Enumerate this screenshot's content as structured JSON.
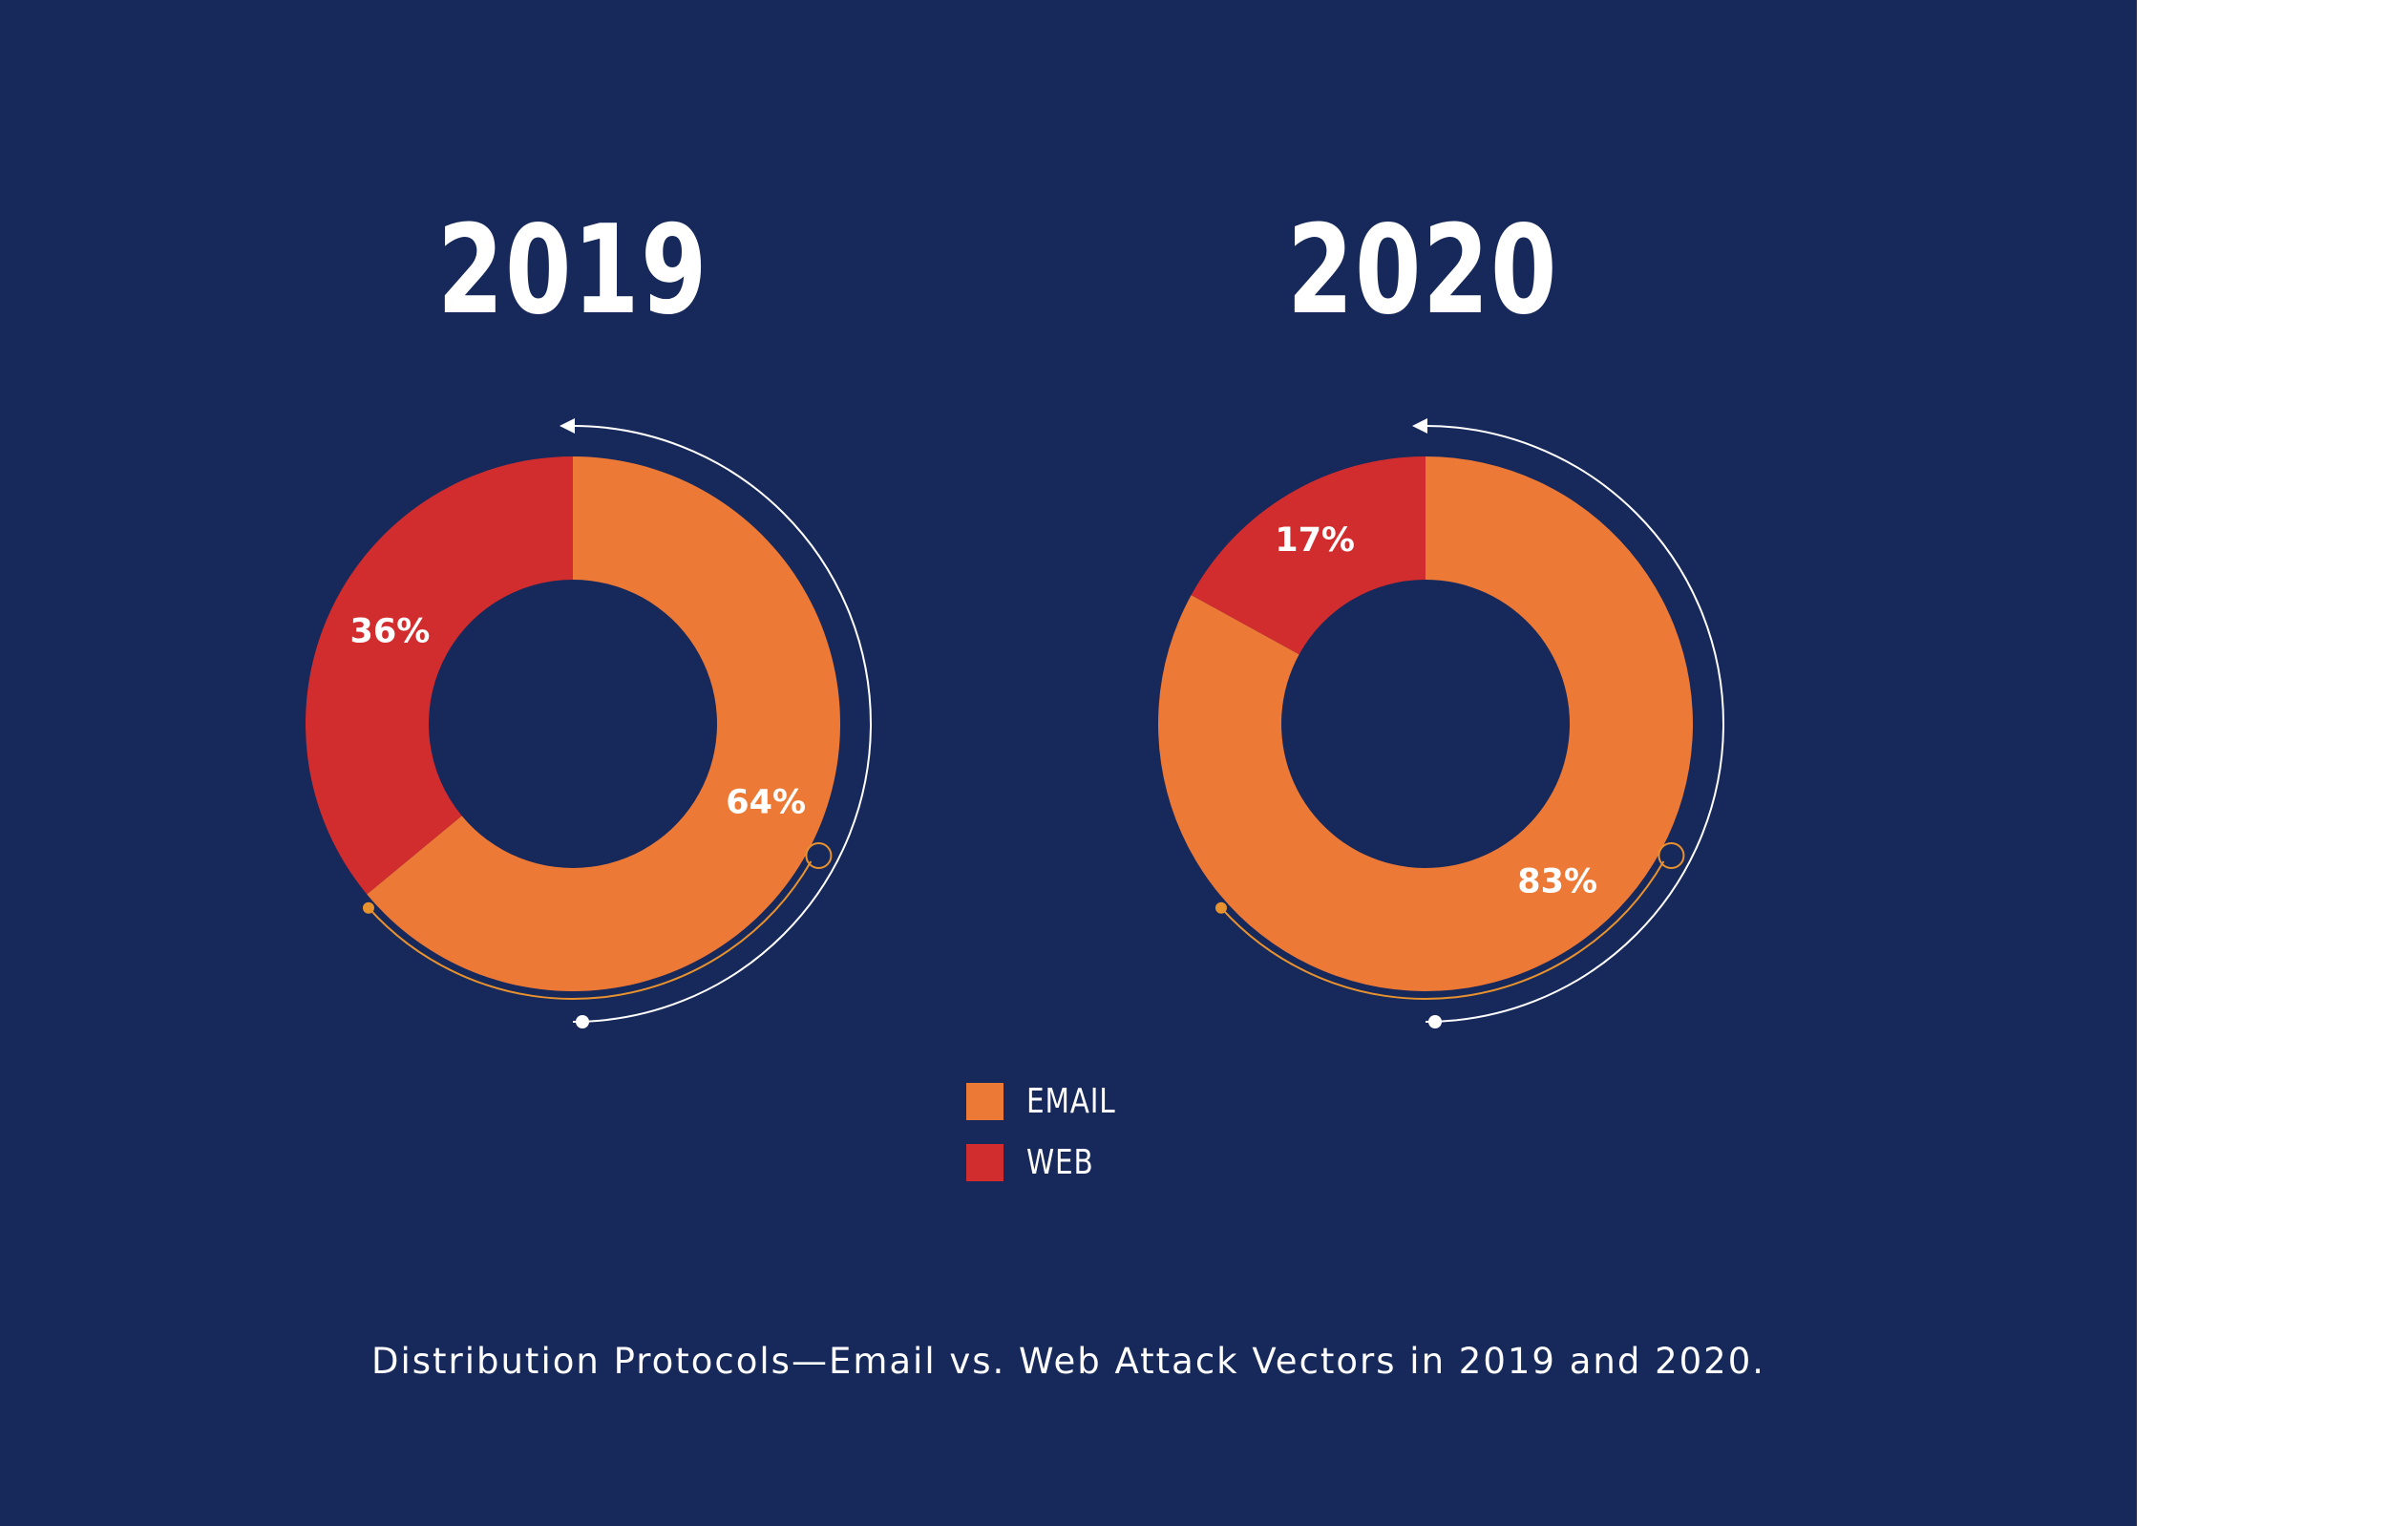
{
  "colors": {
    "background": "#17285a",
    "email": "#ec7936",
    "web": "#d22d2e",
    "accent": "#e8922f",
    "text": "#ffffff"
  },
  "legend": [
    {
      "label": "EMAIL",
      "color": "#ec7936"
    },
    {
      "label": "WEB",
      "color": "#d22d2e"
    }
  ],
  "caption": "Distribution Protocols—Email vs. Web Attack Vectors in 2019 and 2020.",
  "chart_data": [
    {
      "type": "pie",
      "title": "2019",
      "categories": [
        "EMAIL",
        "WEB"
      ],
      "values": [
        64,
        36
      ],
      "labels": [
        "64%",
        "36%"
      ]
    },
    {
      "type": "pie",
      "title": "2020",
      "categories": [
        "EMAIL",
        "WEB"
      ],
      "values": [
        83,
        17
      ],
      "labels": [
        "83%",
        "17%"
      ]
    }
  ]
}
